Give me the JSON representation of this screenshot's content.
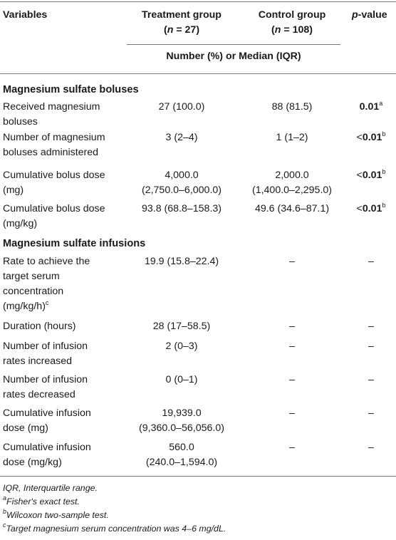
{
  "header": {
    "col1": "Variables",
    "col2_line1": "Treatment group",
    "col2_n_label": "n",
    "col2_n_value": "= 27)",
    "col3_line1": "Control group",
    "col3_n_label": "n",
    "col3_n_value": "= 108)",
    "col4_p": "p",
    "col4_rest": "-value",
    "subheader": "Number (%) or Median (IQR)"
  },
  "sections": [
    {
      "title": "Magnesium sulfate boluses",
      "rows": [
        {
          "variable": [
            "Received magnesium",
            "boluses"
          ],
          "treatment": [
            "27 (100.0)"
          ],
          "control": [
            "88 (81.5)"
          ],
          "p_prefix": "",
          "p_bold": "0.01",
          "p_sup": "a"
        },
        {
          "variable": [
            "Number of magnesium",
            "boluses administered"
          ],
          "treatment": [
            "3 (2–4)"
          ],
          "control": [
            "1 (1–2)"
          ],
          "p_prefix": "<",
          "p_bold": "0.01",
          "p_sup": "b"
        },
        {
          "variable": [
            "Cumulative bolus dose",
            "(mg)"
          ],
          "treatment": [
            "4,000.0",
            "(2,750.0–6,000.0)"
          ],
          "control": [
            "2,000.0",
            "(1,400.0–2,295.0)"
          ],
          "p_prefix": "<",
          "p_bold": "0.01",
          "p_sup": "b"
        },
        {
          "variable": [
            "Cumulative bolus dose",
            "(mg/kg)"
          ],
          "treatment": [
            "93.8 (68.8–158.3)"
          ],
          "control": [
            "49.6 (34.6–87.1)"
          ],
          "p_prefix": "<",
          "p_bold": "0.01",
          "p_sup": "b"
        }
      ]
    },
    {
      "title": "Magnesium sulfate infusions",
      "rows": [
        {
          "variable": [
            "Rate to achieve the",
            "target serum",
            "concentration",
            "(mg/kg/h)"
          ],
          "var_sup": "c",
          "treatment": [
            "19.9 (15.8–22.4)"
          ],
          "control": [
            "–"
          ],
          "p": "–"
        },
        {
          "variable": [
            "Duration (hours)"
          ],
          "treatment": [
            "28 (17–58.5)"
          ],
          "control": [
            "–"
          ],
          "p": "–"
        },
        {
          "variable": [
            "Number of infusion",
            "rates increased"
          ],
          "treatment": [
            "2 (0–3)"
          ],
          "control": [
            "–"
          ],
          "p": "–"
        },
        {
          "variable": [
            "Number of infusion",
            "rates decreased"
          ],
          "treatment": [
            "0 (0–1)"
          ],
          "control": [
            "–"
          ],
          "p": "–"
        },
        {
          "variable": [
            "Cumulative infusion",
            "dose (mg)"
          ],
          "treatment": [
            "19,939.0",
            "(9,360.0–56,056.0)"
          ],
          "control": [
            "–"
          ],
          "p": "–"
        },
        {
          "variable": [
            "Cumulative infusion",
            "dose (mg/kg)"
          ],
          "treatment": [
            "560.0",
            "(240.0–1,594.0)"
          ],
          "control": [
            "–"
          ],
          "p": "–"
        }
      ]
    }
  ],
  "footnotes": [
    {
      "sup": "",
      "text": "IQR, Interquartile range."
    },
    {
      "sup": "a",
      "text": "Fisher's exact test."
    },
    {
      "sup": "b",
      "text": "Wilcoxon two-sample test."
    },
    {
      "sup": "c",
      "text": "Target magnesium serum concentration was 4–6 mg/dL."
    }
  ]
}
